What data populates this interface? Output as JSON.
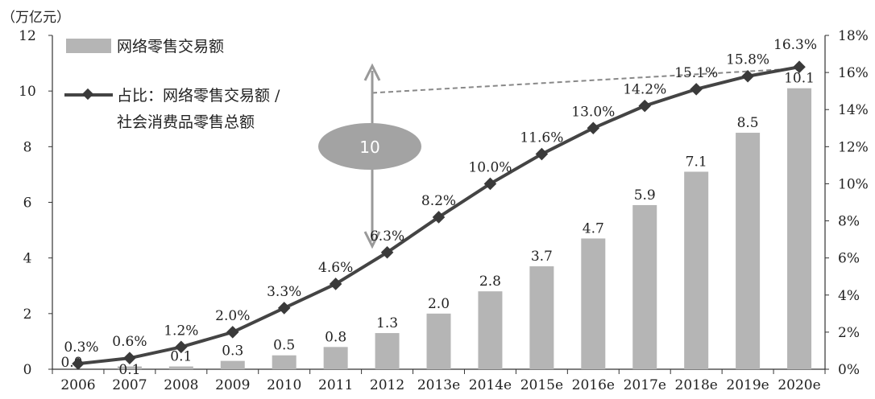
{
  "chart_data": {
    "type": "bar+line",
    "y_left_unit": "（万亿元）",
    "categories": [
      "2006",
      "2007",
      "2008",
      "2009",
      "2010",
      "2011",
      "2012",
      "2013e",
      "2014e",
      "2015e",
      "2016e",
      "2017e",
      "2018e",
      "2019e",
      "2020e"
    ],
    "series": [
      {
        "name": "网络零售交易额",
        "type": "bar",
        "axis": "left",
        "values": [
          0.0,
          0.1,
          0.1,
          0.3,
          0.5,
          0.8,
          1.3,
          2.0,
          2.8,
          3.7,
          4.7,
          5.9,
          7.1,
          8.5,
          10.1
        ],
        "labels": [
          "0.0",
          "0.1",
          "0.1",
          "0.3",
          "0.5",
          "0.8",
          "1.3",
          "2.0",
          "2.8",
          "3.7",
          "4.7",
          "5.9",
          "7.1",
          "8.5",
          "10.1"
        ]
      },
      {
        "name_line1": "占比：网络零售交易额 /",
        "name_line2": "社会消费品零售总额",
        "type": "line",
        "axis": "right",
        "values": [
          0.3,
          0.6,
          1.2,
          2.0,
          3.3,
          4.6,
          6.3,
          8.2,
          10.0,
          11.6,
          13.0,
          14.2,
          15.1,
          15.8,
          16.3
        ],
        "labels": [
          "0.3%",
          "0.6%",
          "1.2%",
          "2.0%",
          "3.3%",
          "4.6%",
          "6.3%",
          "8.2%",
          "10.0%",
          "11.6%",
          "13.0%",
          "14.2%",
          "15.1%",
          "15.8%",
          "16.3%"
        ]
      }
    ],
    "y_left": {
      "ticks": [
        "0",
        "2",
        "4",
        "6",
        "8",
        "10",
        "12"
      ],
      "range": [
        0,
        12
      ]
    },
    "y_right": {
      "ticks": [
        "0%",
        "2%",
        "4%",
        "6%",
        "8%",
        "10%",
        "12%",
        "14%",
        "16%",
        "18%"
      ],
      "range": [
        0,
        18
      ]
    },
    "annotation": {
      "text": "10",
      "from_category": "2012",
      "to_category": "2020e"
    },
    "colors": {
      "bar": "#b5b5b5",
      "line": "#444444",
      "marker": "#3a3a3a",
      "ellipse": "#a3a3a3",
      "arrow": "#999999",
      "dashed": "#888888"
    },
    "legend_position": "top-left"
  }
}
